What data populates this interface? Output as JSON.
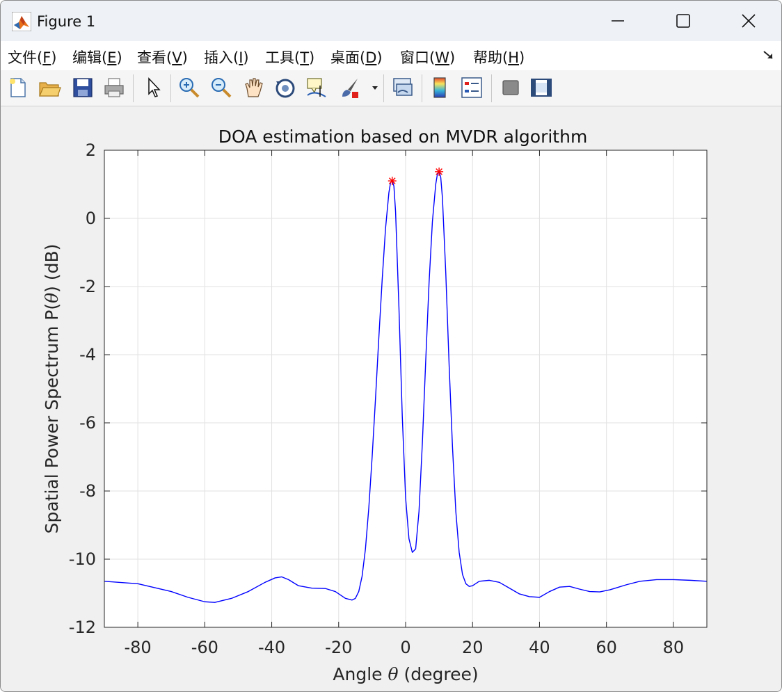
{
  "window": {
    "title": "Figure 1",
    "minimize_icon": "minimize-icon",
    "maximize_icon": "maximize-icon",
    "close_icon": "close-icon"
  },
  "menu": {
    "items": [
      {
        "label": "文件(",
        "key": "F",
        "tail": ")"
      },
      {
        "label": "编辑(",
        "key": "E",
        "tail": ")"
      },
      {
        "label": "查看(",
        "key": "V",
        "tail": ")"
      },
      {
        "label": "插入(",
        "key": "I",
        "tail": ")"
      },
      {
        "label": "工具(",
        "key": "T",
        "tail": ")"
      },
      {
        "label": "桌面(",
        "key": "D",
        "tail": ")"
      },
      {
        "label": "窗口(",
        "key": "W",
        "tail": ")"
      },
      {
        "label": "帮助(",
        "key": "H",
        "tail": ")"
      }
    ]
  },
  "toolbar": {
    "icons": [
      "new-figure-icon",
      "open-file-icon",
      "save-icon",
      "print-icon",
      "edit-plot-icon",
      "zoom-in-icon",
      "zoom-out-icon",
      "pan-icon",
      "rotate-3d-icon",
      "data-cursor-icon",
      "brush-icon",
      "brush-dropdown-icon",
      "link-plot-icon",
      "colorbar-icon",
      "legend-icon",
      "hide-plot-tools-icon",
      "show-plot-tools-icon"
    ]
  },
  "chart_data": {
    "type": "line",
    "title": "DOA estimation based on MVDR algorithm",
    "xlabel_pre": "Angle ",
    "xlabel_sym": "θ",
    "xlabel_post": " (degree)",
    "ylabel_pre": "Spatial Power Spectrum P(",
    "ylabel_sym": "θ",
    "ylabel_post": ") (dB)",
    "xlim": [
      -90,
      90
    ],
    "ylim": [
      -12,
      2
    ],
    "xticks": [
      -80,
      -60,
      -40,
      -20,
      0,
      20,
      40,
      60,
      80
    ],
    "yticks": [
      2,
      0,
      -2,
      -4,
      -6,
      -8,
      -10,
      -12
    ],
    "grid": true,
    "line_color": "#0000ff",
    "marker_color": "#ff0000",
    "series": [
      {
        "x": [
          -90,
          -80,
          -70,
          -65,
          -60,
          -57,
          -52,
          -47,
          -42,
          -39,
          -37,
          -35,
          -32,
          -28,
          -24,
          -21,
          -18,
          -16,
          -15,
          -14,
          -13,
          -12,
          -11,
          -10,
          -9,
          -8,
          -7,
          -6,
          -5,
          -4.5,
          -4,
          -3.5,
          -3,
          -2,
          -1,
          0,
          1,
          2,
          3,
          4,
          5,
          6,
          7,
          8,
          9,
          9.5,
          10,
          10.5,
          11,
          12,
          13,
          14,
          15,
          16,
          17,
          18,
          19,
          20,
          22,
          25,
          28,
          31,
          34,
          37,
          40,
          43,
          46,
          49,
          52,
          55,
          58,
          61,
          66,
          70,
          75,
          80,
          85,
          90
        ],
        "y": [
          -10.65,
          -10.72,
          -10.95,
          -11.12,
          -11.25,
          -11.27,
          -11.15,
          -10.95,
          -10.68,
          -10.55,
          -10.52,
          -10.6,
          -10.78,
          -10.85,
          -10.86,
          -10.95,
          -11.15,
          -11.2,
          -11.15,
          -10.95,
          -10.5,
          -9.7,
          -8.5,
          -7,
          -5.3,
          -3.5,
          -1.8,
          -0.3,
          0.75,
          1.05,
          1.1,
          0.95,
          0.2,
          -2.6,
          -5.8,
          -8.2,
          -9.4,
          -9.8,
          -9.7,
          -8.6,
          -6.6,
          -4.2,
          -1.9,
          -0.1,
          1.0,
          1.3,
          1.37,
          1.2,
          0.6,
          -1.6,
          -4.3,
          -6.7,
          -8.6,
          -9.8,
          -10.45,
          -10.72,
          -10.8,
          -10.78,
          -10.65,
          -10.62,
          -10.68,
          -10.85,
          -11.02,
          -11.1,
          -11.12,
          -10.95,
          -10.82,
          -10.8,
          -10.88,
          -10.95,
          -10.96,
          -10.9,
          -10.75,
          -10.65,
          -10.6,
          -10.6,
          -10.62,
          -10.65
        ]
      }
    ],
    "peaks": [
      {
        "x": -4,
        "y": 1.1
      },
      {
        "x": 10,
        "y": 1.37
      }
    ]
  }
}
